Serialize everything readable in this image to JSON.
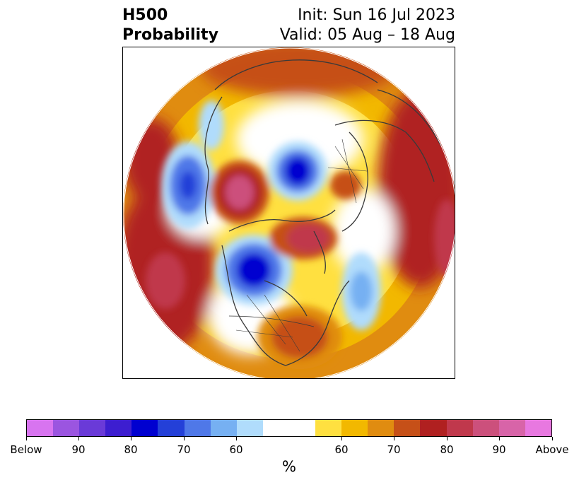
{
  "title": {
    "left_line1": "H500",
    "left_line2": "Probability",
    "right_line1": "Init: Sun 16 Jul 2023",
    "right_line2": "Valid: 05 Aug – 18 Aug"
  },
  "map": {
    "projection": "north-polar-stereographic",
    "features": [
      "coastlines",
      "country-borders",
      "us-state-borders"
    ]
  },
  "colorbar": {
    "colors": [
      "#d874f0",
      "#9b55e0",
      "#6a3ad8",
      "#3d1ed0",
      "#0000d0",
      "#2440d8",
      "#4f78e8",
      "#76b0f2",
      "#b0dcfc",
      "#ffffff",
      "#ffffff",
      "#ffe040",
      "#f2b800",
      "#e08c10",
      "#c65018",
      "#b02020",
      "#c0384c",
      "#cc507c",
      "#d864a8",
      "#e878e0"
    ],
    "tick_labels": [
      "Below",
      "90",
      "80",
      "70",
      "60",
      "60",
      "70",
      "80",
      "90",
      "Above"
    ],
    "unit": "%"
  },
  "colors": {
    "above_strong": "#b02020",
    "above_mid": "#e08c10",
    "above_weak": "#ffe040",
    "below_strong": "#0000d0",
    "below_weak": "#b0dcfc"
  }
}
